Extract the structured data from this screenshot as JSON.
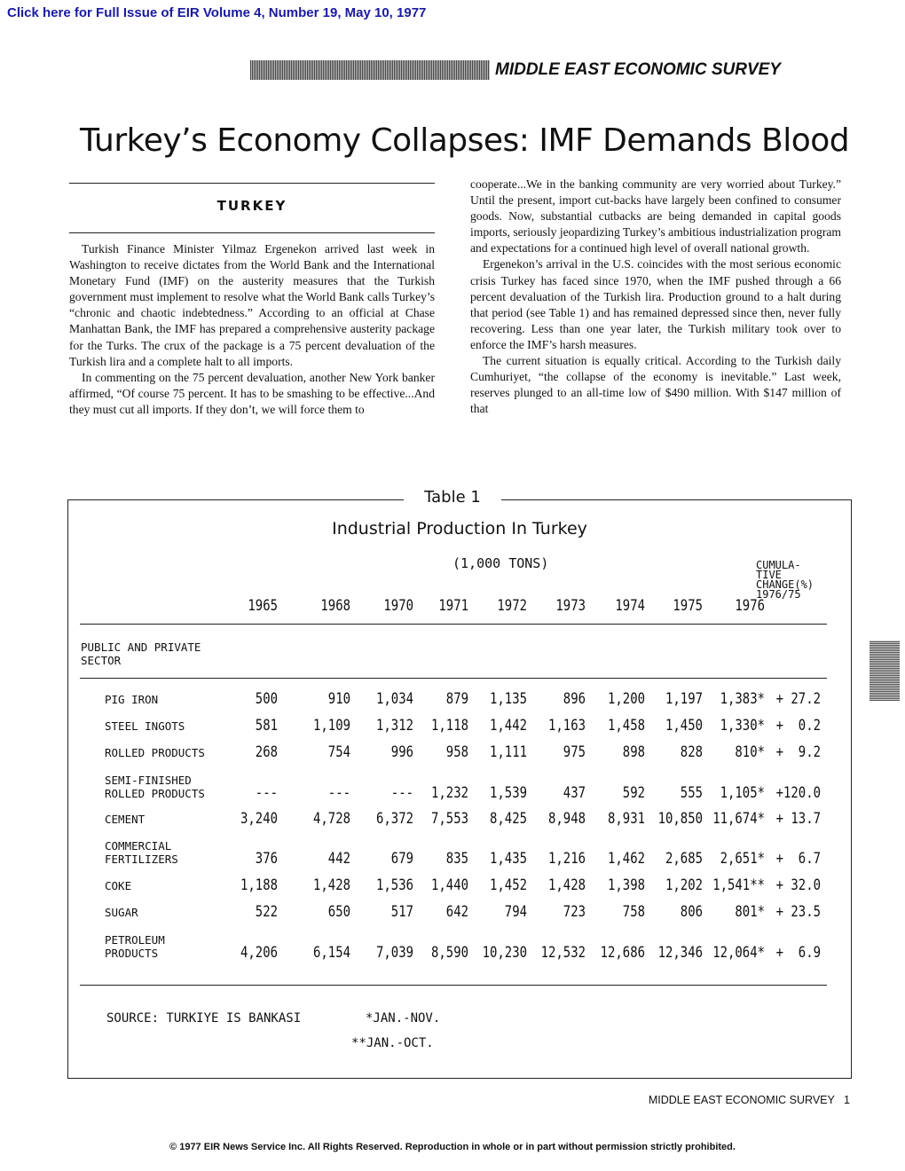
{
  "header": {
    "link_text": "Click here for Full Issue of EIR Volume 4, Number 19, May 10, 1977",
    "masthead": "MIDDLE EAST ECONOMIC SURVEY"
  },
  "article": {
    "title": "Turkey’s Economy Collapses: IMF Demands Blood",
    "kicker": "TURKEY",
    "left_paragraphs": [
      "Turkish Finance Minister Yilmaz Ergenekon arrived last week in Washington to receive dictates from the World Bank and the International Monetary Fund (IMF) on the austerity measures that the Turkish government must implement to resolve what the World Bank calls Turkey’s “chronic and chaotic indebtedness.” According to an official at Chase Manhattan Bank, the IMF has prepared a comprehensive austerity package for the Turks. The crux of the package is a 75 percent devaluation of the Turkish lira and a complete halt to all imports.",
      "In commenting on the 75 percent devaluation, another New York banker affirmed, “Of course 75 percent. It has to be smashing to be effective...And they must cut all imports. If they don’t, we will force them to"
    ],
    "right_paragraphs": [
      "cooperate...We in the banking community are very worried about Turkey.” Until the present, import cut-backs have largely been confined to consumer goods. Now, substantial cutbacks are being demanded in capital goods imports, seriously jeopardizing Turkey’s ambitious industrialization program and expectations for a continued high level of overall national growth.",
      "Ergenekon’s arrival in the U.S. coincides with the most serious economic crisis Turkey has faced since 1970, when the IMF pushed through a 66 percent devaluation of the Turkish lira. Production ground to a halt during that period (see Table 1) and has remained depressed since then, never fully recovering. Less than one year later, the Turkish military took over to enforce the IMF’s harsh measures.",
      "The current situation is equally critical. According to the Turkish daily Cumhuriyet, “the collapse of the economy is inevitable.” Last week, reserves plunged to an all-time low of $490 million. With $147 million of that"
    ]
  },
  "table": {
    "label": "Table 1",
    "title": "Industrial Production In Turkey",
    "units": "(1,000 TONS)",
    "cumulative_header": "CUMULA-\nTIVE\nCHANGE(%)\n1976/75",
    "years": [
      "1965",
      "1968",
      "1970",
      "1971",
      "1972",
      "1973",
      "1974",
      "1975",
      "1976"
    ],
    "section": "PUBLIC AND PRIVATE\nSECTOR",
    "rows": [
      {
        "label": "PIG IRON",
        "values": [
          "500",
          "910",
          "1,034",
          "879",
          "1,135",
          "896",
          "1,200",
          "1,197",
          "1,383*",
          "+ 27.2"
        ]
      },
      {
        "label": "STEEL INGOTS",
        "values": [
          "581",
          "1,109",
          "1,312",
          "1,118",
          "1,442",
          "1,163",
          "1,458",
          "1,450",
          "1,330*",
          "+  0.2"
        ]
      },
      {
        "label": "ROLLED PRODUCTS",
        "values": [
          "268",
          "754",
          "996",
          "958",
          "1,111",
          "975",
          "898",
          "828",
          "810*",
          "+  9.2"
        ]
      },
      {
        "label": "SEMI-FINISHED\nROLLED PRODUCTS",
        "values": [
          "---",
          "---",
          "---",
          "1,232",
          "1,539",
          "437",
          "592",
          "555",
          "1,105*",
          "+120.0"
        ]
      },
      {
        "label": "CEMENT",
        "values": [
          "3,240",
          "4,728",
          "6,372",
          "7,553",
          "8,425",
          "8,948",
          "8,931",
          "10,850",
          "11,674*",
          "+ 13.7"
        ]
      },
      {
        "label": "COMMERCIAL\nFERTILIZERS",
        "values": [
          "376",
          "442",
          "679",
          "835",
          "1,435",
          "1,216",
          "1,462",
          "2,685",
          "2,651*",
          "+  6.7"
        ]
      },
      {
        "label": "COKE",
        "values": [
          "1,188",
          "1,428",
          "1,536",
          "1,440",
          "1,452",
          "1,428",
          "1,398",
          "1,202",
          "1,541**",
          "+ 32.0"
        ]
      },
      {
        "label": "SUGAR",
        "values": [
          "522",
          "650",
          "517",
          "642",
          "794",
          "723",
          "758",
          "806",
          "801*",
          "+ 23.5"
        ]
      },
      {
        "label": "PETROLEUM\nPRODUCTS",
        "values": [
          "4,206",
          "6,154",
          "7,039",
          "8,590",
          "10,230",
          "12,532",
          "12,686",
          "12,346",
          "12,064*",
          "+  6.9"
        ]
      }
    ],
    "source": "SOURCE: TURKIYE IS BANKASI",
    "note1": "*JAN.-NOV.",
    "note2": "**JAN.-OCT."
  },
  "footer": {
    "running_foot": "MIDDLE EAST ECONOMIC SURVEY   1",
    "copyright": "© 1977 EIR News Service Inc. All Rights Reserved. Reproduction in whole or in part without permission strictly prohibited."
  }
}
